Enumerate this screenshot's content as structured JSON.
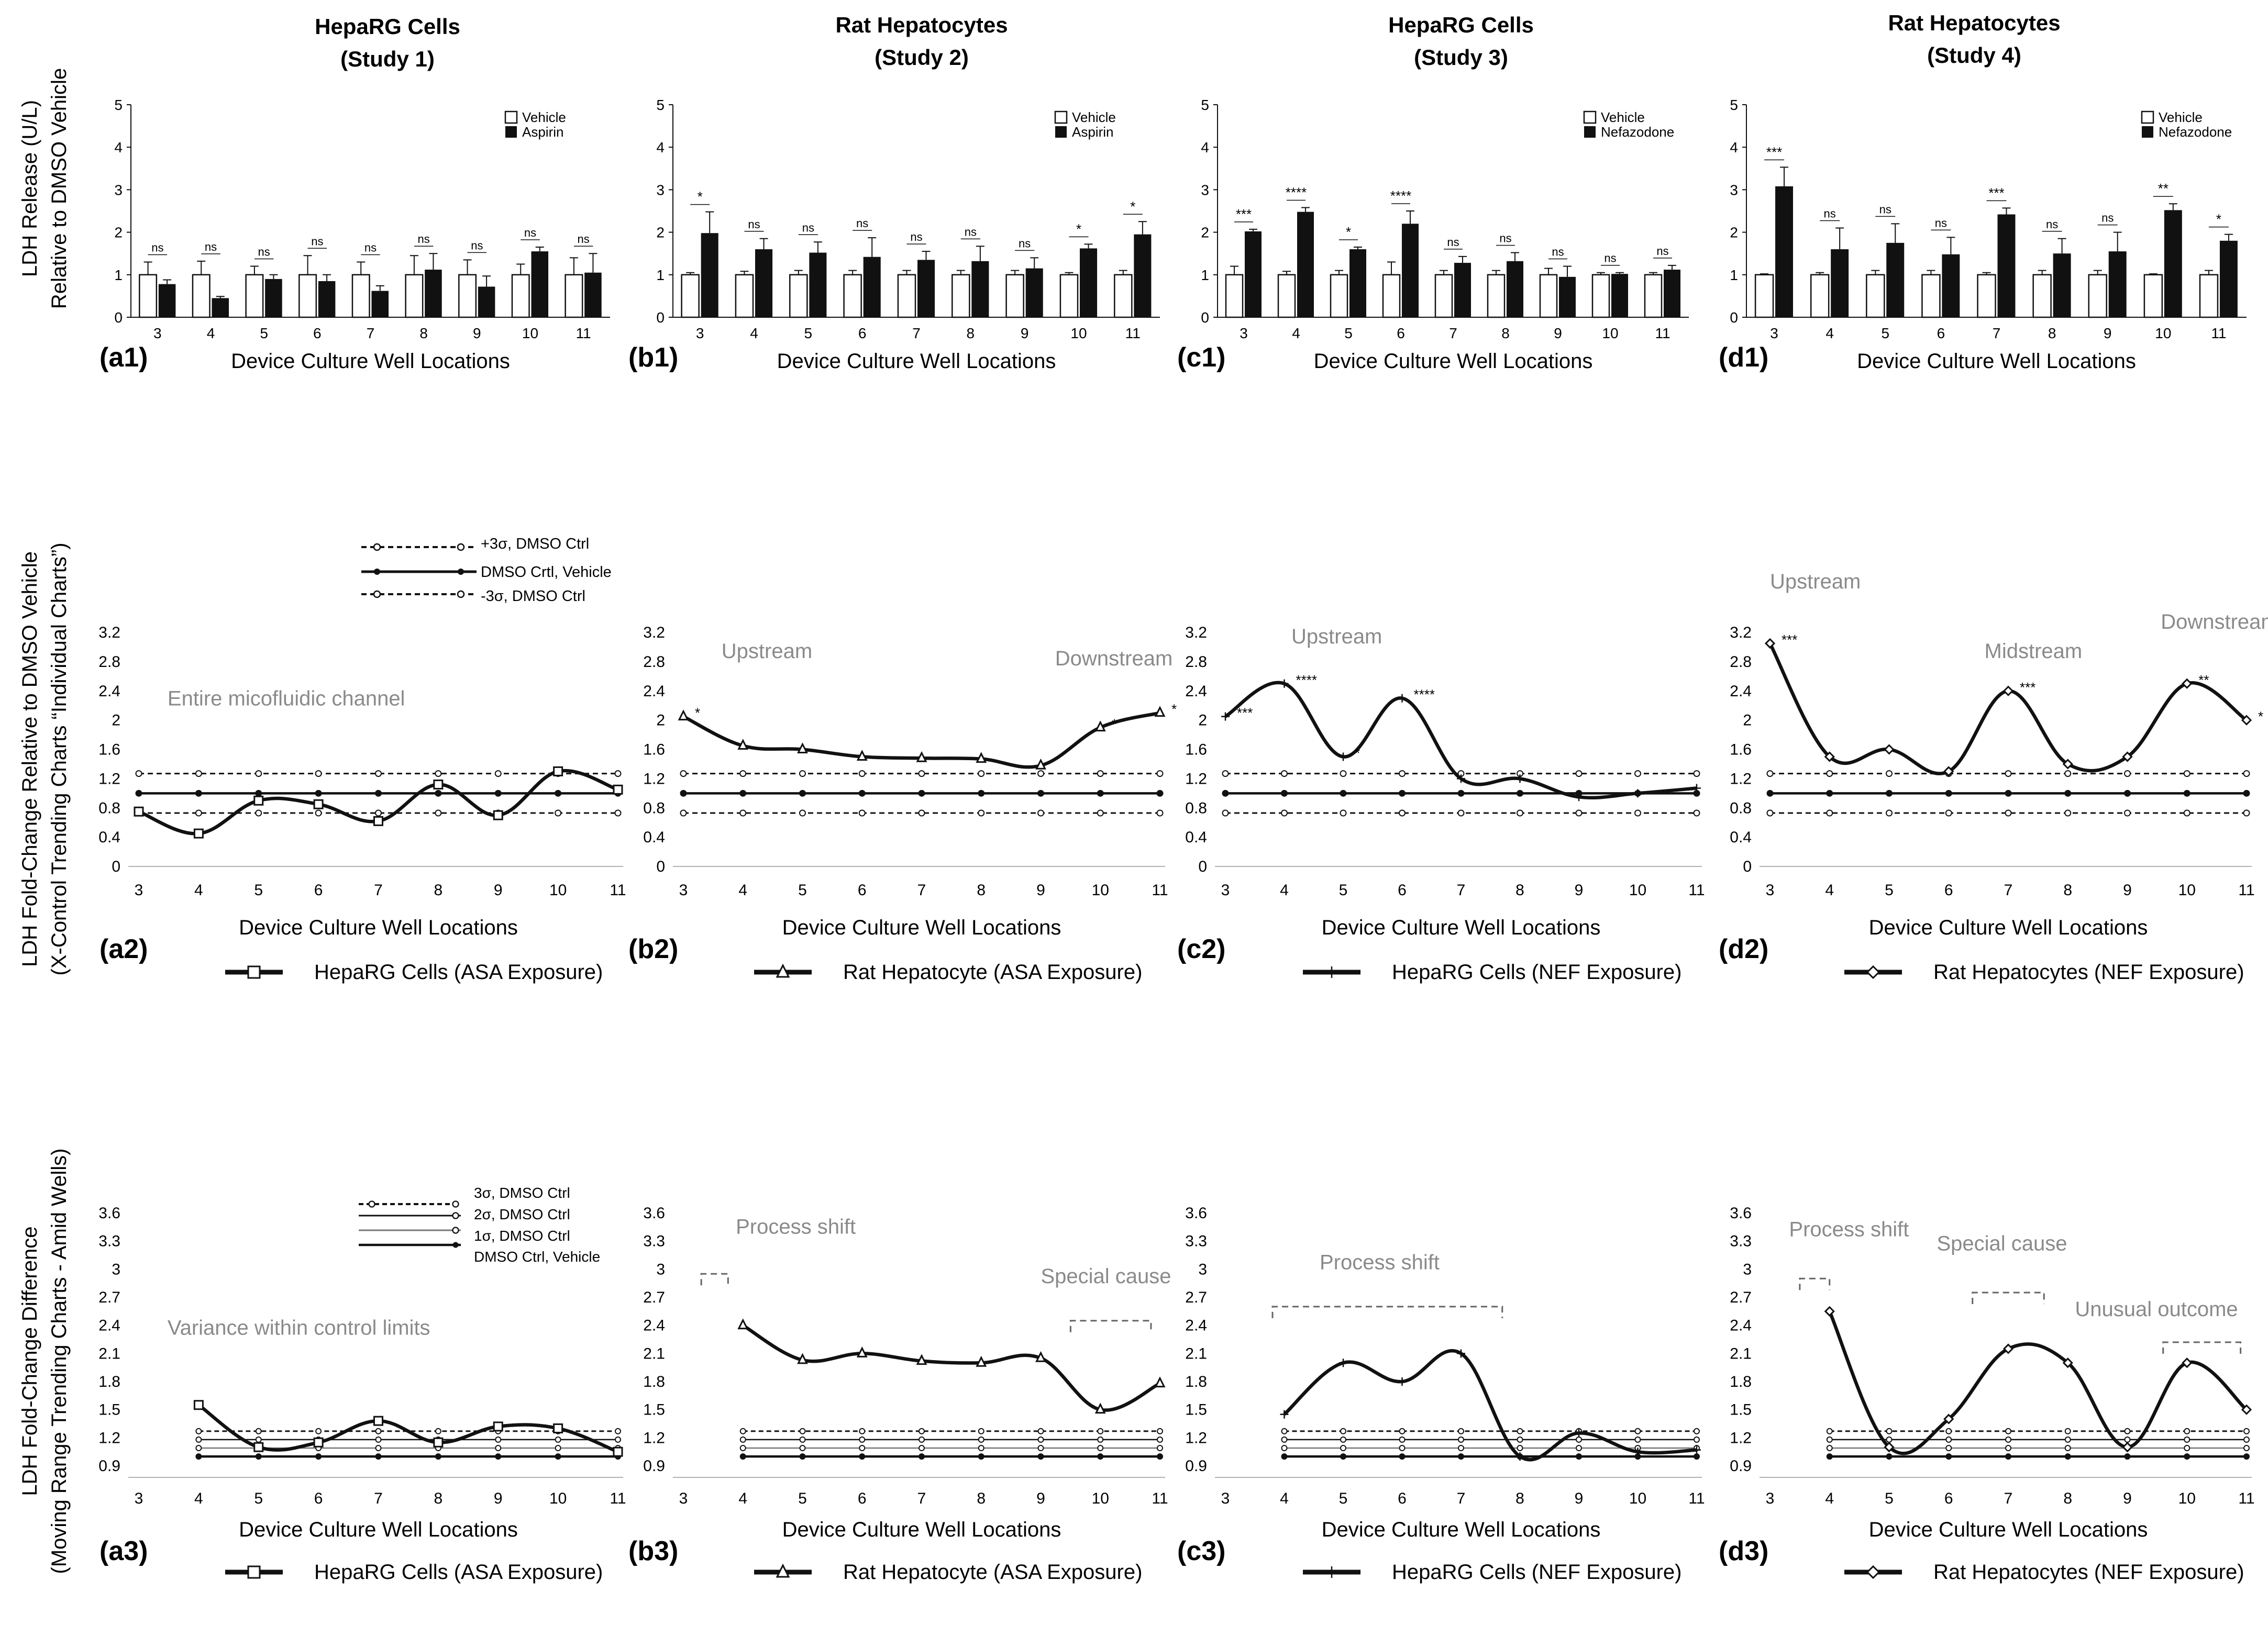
{
  "figure": {
    "row1_ylabel": [
      "LDH Release (U/L)",
      "Relative to DMSO Vehicle"
    ],
    "row2_ylabel": [
      "LDH Fold-Change Relative to DMSO Vehicle",
      "(X-Control Trending Charts “Individual Charts”)"
    ],
    "row3_ylabel": [
      "LDH Fold-Change Difference",
      "(Moving Range Trending Charts - Amid Wells)"
    ],
    "xlabel": "Device Culture Well Locations",
    "panel_titles": [
      [
        "HepaRG Cells",
        "(Study 1)"
      ],
      [
        "Rat Hepatocytes",
        "(Study 2)"
      ],
      [
        "HepaRG Cells",
        "(Study 3)"
      ],
      [
        "Rat Hepatocytes",
        "(Study 4)"
      ]
    ],
    "row2_legend": [
      "+3σ, DMSO Ctrl",
      "DMSO Crtl, Vehicle",
      "-3σ, DMSO Ctrl"
    ],
    "row3_legend": [
      "3σ, DMSO Ctrl",
      "2σ, DMSO Ctrl",
      "1σ, DMSO Ctrl",
      "DMSO Ctrl, Vehicle"
    ],
    "series_names": [
      "HepaRG Cells (ASA Exposure)",
      "Rat Hepatocyte (ASA Exposure)",
      "HepaRG Cells (NEF Exposure)",
      "Rat Hepatocytes (NEF Exposure)"
    ],
    "colors": {
      "ink": "#111111",
      "annotation": "#8a8a8a",
      "bar_vehicle": "#ffffff",
      "bar_treated": "#111111"
    }
  },
  "chart_data": [
    {
      "id": "a1",
      "type": "bar",
      "title": "HepaRG Cells (Study 1)",
      "xlabel": "Device Culture Well Locations",
      "categories": [
        "3",
        "4",
        "5",
        "6",
        "7",
        "8",
        "9",
        "10",
        "11"
      ],
      "ylim": [
        0,
        5
      ],
      "yticks": [
        "0",
        "1",
        "2",
        "3",
        "4",
        "5"
      ],
      "legend": [
        "Vehicle",
        "Aspirin"
      ],
      "series": [
        {
          "name": "Vehicle",
          "values": [
            1,
            1,
            1,
            1,
            1,
            1,
            1,
            1,
            1
          ],
          "err": [
            0.3,
            0.32,
            0.2,
            0.45,
            0.3,
            0.45,
            0.35,
            0.25,
            0.4
          ]
        },
        {
          "name": "Aspirin",
          "values": [
            0.78,
            0.45,
            0.9,
            0.85,
            0.62,
            1.12,
            0.72,
            1.55,
            1.05
          ],
          "err": [
            0.1,
            0.04,
            0.1,
            0.15,
            0.12,
            0.38,
            0.25,
            0.1,
            0.45
          ]
        }
      ],
      "sig": [
        "ns",
        "ns",
        "ns",
        "ns",
        "ns",
        "ns",
        "ns",
        "ns",
        "ns"
      ]
    },
    {
      "id": "b1",
      "type": "bar",
      "title": "Rat Hepatocytes (Study 2)",
      "xlabel": "Device Culture Well Locations",
      "categories": [
        "3",
        "4",
        "5",
        "6",
        "7",
        "8",
        "9",
        "10",
        "11"
      ],
      "ylim": [
        0,
        5
      ],
      "yticks": [
        "0",
        "1",
        "2",
        "3",
        "4",
        "5"
      ],
      "legend": [
        "Vehicle",
        "Aspirin"
      ],
      "series": [
        {
          "name": "Vehicle",
          "values": [
            1,
            1,
            1,
            1,
            1,
            1,
            1,
            1,
            1
          ],
          "err": [
            0.05,
            0.08,
            0.1,
            0.1,
            0.1,
            0.1,
            0.1,
            0.05,
            0.1
          ]
        },
        {
          "name": "Aspirin",
          "values": [
            1.98,
            1.6,
            1.52,
            1.42,
            1.35,
            1.32,
            1.15,
            1.62,
            1.95
          ],
          "err": [
            0.5,
            0.25,
            0.25,
            0.45,
            0.2,
            0.35,
            0.25,
            0.1,
            0.3
          ]
        }
      ],
      "sig": [
        "*",
        "ns",
        "ns",
        "ns",
        "ns",
        "ns",
        "ns",
        "*",
        "*"
      ]
    },
    {
      "id": "c1",
      "type": "bar",
      "title": "HepaRG Cells (Study 3)",
      "xlabel": "Device Culture Well Locations",
      "categories": [
        "3",
        "4",
        "5",
        "6",
        "7",
        "8",
        "9",
        "10",
        "11"
      ],
      "ylim": [
        0,
        5
      ],
      "yticks": [
        "0",
        "1",
        "2",
        "3",
        "4",
        "5"
      ],
      "legend": [
        "Vehicle",
        "Nefazodone"
      ],
      "series": [
        {
          "name": "Vehicle",
          "values": [
            1,
            1,
            1,
            1,
            1,
            1,
            1,
            1,
            1
          ],
          "err": [
            0.2,
            0.08,
            0.1,
            0.3,
            0.1,
            0.1,
            0.15,
            0.05,
            0.05
          ]
        },
        {
          "name": "Nefazodone",
          "values": [
            2.02,
            2.48,
            1.6,
            2.2,
            1.28,
            1.32,
            0.95,
            1.02,
            1.12
          ],
          "err": [
            0.05,
            0.1,
            0.05,
            0.3,
            0.15,
            0.2,
            0.25,
            0.03,
            0.1
          ]
        }
      ],
      "sig": [
        "***",
        "****",
        "*",
        "****",
        "ns",
        "ns",
        "ns",
        "ns",
        "ns"
      ]
    },
    {
      "id": "d1",
      "type": "bar",
      "title": "Rat Hepatocytes (Study 4)",
      "xlabel": "Device Culture Well Locations",
      "categories": [
        "3",
        "4",
        "5",
        "6",
        "7",
        "8",
        "9",
        "10",
        "11"
      ],
      "ylim": [
        0,
        5
      ],
      "yticks": [
        "0",
        "1",
        "2",
        "3",
        "4",
        "5"
      ],
      "legend": [
        "Vehicle",
        "Nefazodone"
      ],
      "series": [
        {
          "name": "Vehicle",
          "values": [
            1,
            1,
            1,
            1,
            1,
            1,
            1,
            1,
            1
          ],
          "err": [
            0.02,
            0.05,
            0.1,
            0.1,
            0.05,
            0.1,
            0.1,
            0.02,
            0.1
          ]
        },
        {
          "name": "Nefazodone",
          "values": [
            3.08,
            1.6,
            1.75,
            1.48,
            2.42,
            1.5,
            1.55,
            2.52,
            1.8
          ],
          "err": [
            0.45,
            0.5,
            0.45,
            0.4,
            0.15,
            0.35,
            0.45,
            0.15,
            0.15
          ]
        }
      ],
      "sig": [
        "***",
        "ns",
        "ns",
        "ns",
        "***",
        "ns",
        "ns",
        "**",
        "*"
      ]
    },
    {
      "id": "a2",
      "type": "line",
      "title": "HepaRG Cells (ASA Exposure)",
      "xlabel": "Device Culture Well Locations",
      "x": [
        3,
        4,
        5,
        6,
        7,
        8,
        9,
        10,
        11
      ],
      "y": [
        0.75,
        0.45,
        0.9,
        0.85,
        0.62,
        1.12,
        0.7,
        1.3,
        1.05
      ],
      "marker": "square",
      "ylim": [
        0,
        3.2
      ],
      "yticks": [
        "0",
        "0.4",
        "0.8",
        "1.2",
        "1.6",
        "2",
        "2.4",
        "2.8",
        "3.2"
      ],
      "xlim": [
        3,
        11
      ],
      "limits": {
        "upper": 1.27,
        "center": 1.0,
        "lower": 0.73
      },
      "annotations": [
        "Entire micofluidic channel"
      ],
      "sig_labels": []
    },
    {
      "id": "b2",
      "type": "line",
      "title": "Rat Hepatocyte (ASA Exposure)",
      "xlabel": "Device Culture Well Locations",
      "x": [
        3,
        4,
        5,
        6,
        7,
        8,
        9,
        10,
        11
      ],
      "y": [
        2.05,
        1.65,
        1.6,
        1.5,
        1.48,
        1.47,
        1.38,
        1.9,
        2.1
      ],
      "marker": "triangle",
      "ylim": [
        0,
        3.2
      ],
      "yticks": [
        "0",
        "0.4",
        "0.8",
        "1.2",
        "1.6",
        "2",
        "2.4",
        "2.8",
        "3.2"
      ],
      "xlim": [
        3,
        11
      ],
      "limits": {
        "upper": 1.27,
        "center": 1.0,
        "lower": 0.73
      },
      "annotations": [
        "Upstream",
        "Downstream"
      ],
      "sig_labels": [
        {
          "x": 3,
          "text": "*"
        },
        {
          "x": 10,
          "text": "*"
        },
        {
          "x": 11,
          "text": "*"
        }
      ]
    },
    {
      "id": "c2",
      "type": "line",
      "title": "HepaRG Cells (NEF Exposure)",
      "xlabel": "Device Culture Well Locations",
      "x": [
        3,
        4,
        5,
        6,
        7,
        8,
        9,
        10,
        11
      ],
      "y": [
        2.05,
        2.5,
        1.5,
        2.3,
        1.2,
        1.2,
        0.95,
        1.0,
        1.07
      ],
      "marker": "plus",
      "ylim": [
        0,
        3.2
      ],
      "yticks": [
        "0",
        "0.4",
        "0.8",
        "1.2",
        "1.6",
        "2",
        "2.4",
        "2.8",
        "3.2"
      ],
      "xlim": [
        3,
        11
      ],
      "limits": {
        "upper": 1.27,
        "center": 1.0,
        "lower": 0.73
      },
      "annotations": [
        "Upstream"
      ],
      "sig_labels": [
        {
          "x": 3,
          "text": "***"
        },
        {
          "x": 4,
          "text": "****"
        },
        {
          "x": 5,
          "text": "*"
        },
        {
          "x": 6,
          "text": "****"
        }
      ]
    },
    {
      "id": "d2",
      "type": "line",
      "title": "Rat Hepatocytes (NEF Exposure)",
      "xlabel": "Device Culture Well Locations",
      "x": [
        3,
        4,
        5,
        6,
        7,
        8,
        9,
        10,
        11
      ],
      "y": [
        3.05,
        1.5,
        1.6,
        1.3,
        2.4,
        1.4,
        1.5,
        2.5,
        2.0
      ],
      "marker": "diamond",
      "ylim": [
        0,
        3.2
      ],
      "yticks": [
        "0",
        "0.4",
        "0.8",
        "1.2",
        "1.6",
        "2",
        "2.4",
        "2.8",
        "3.2"
      ],
      "xlim": [
        3,
        11
      ],
      "limits": {
        "upper": 1.27,
        "center": 1.0,
        "lower": 0.73
      },
      "annotations": [
        "Upstream",
        "Midstream",
        "Downstream"
      ],
      "sig_labels": [
        {
          "x": 3,
          "text": "***"
        },
        {
          "x": 7,
          "text": "***"
        },
        {
          "x": 10,
          "text": "**"
        },
        {
          "x": 11,
          "text": "*"
        }
      ]
    },
    {
      "id": "a3",
      "type": "line",
      "title": "HepaRG Cells (ASA Exposure)",
      "xlabel": "Device Culture Well Locations",
      "x": [
        4,
        5,
        6,
        7,
        8,
        9,
        10,
        11
      ],
      "y": [
        1.55,
        1.1,
        1.15,
        1.38,
        1.15,
        1.32,
        1.3,
        1.05
      ],
      "marker": "square",
      "ylim": [
        0.9,
        3.6
      ],
      "yticks": [
        "0.9",
        "1.2",
        "1.5",
        "1.8",
        "2.1",
        "2.4",
        "2.7",
        "3",
        "3.3",
        "3.6"
      ],
      "xlim": [
        3,
        11
      ],
      "xticks": [
        "3",
        "4",
        "5",
        "6",
        "7",
        "8",
        "9",
        "10",
        "11"
      ],
      "limits": {
        "sigma3": 1.27,
        "sigma2": 1.18,
        "sigma1": 1.09,
        "center": 1.0
      },
      "annotations": [
        "Variance within control limits"
      ]
    },
    {
      "id": "b3",
      "type": "line",
      "title": "Rat Hepatocyte (ASA Exposure)",
      "xlabel": "Device Culture Well Locations",
      "x": [
        4,
        5,
        6,
        7,
        8,
        9,
        10,
        11
      ],
      "y": [
        2.4,
        2.03,
        2.1,
        2.02,
        2.0,
        2.05,
        1.5,
        1.78
      ],
      "marker": "triangle",
      "ylim": [
        0.9,
        3.6
      ],
      "yticks": [
        "0.9",
        "1.2",
        "1.5",
        "1.8",
        "2.1",
        "2.4",
        "2.7",
        "3",
        "3.3",
        "3.6"
      ],
      "xlim": [
        3,
        11
      ],
      "xticks": [
        "3",
        "4",
        "5",
        "6",
        "7",
        "8",
        "9",
        "10",
        "11"
      ],
      "limits": {
        "sigma3": 1.27,
        "sigma2": 1.18,
        "sigma1": 1.09,
        "center": 1.0
      },
      "annotations": [
        "Process shift",
        "Special cause"
      ]
    },
    {
      "id": "c3",
      "type": "line",
      "title": "HepaRG Cells (NEF Exposure)",
      "xlabel": "Device Culture Well Locations",
      "x": [
        4,
        5,
        6,
        7,
        8,
        9,
        10,
        11
      ],
      "y": [
        1.45,
        2.0,
        1.8,
        2.1,
        1.0,
        1.25,
        1.05,
        1.07
      ],
      "marker": "plus",
      "ylim": [
        0.9,
        3.6
      ],
      "yticks": [
        "0.9",
        "1.2",
        "1.5",
        "1.8",
        "2.1",
        "2.4",
        "2.7",
        "3",
        "3.3",
        "3.6"
      ],
      "xlim": [
        3,
        11
      ],
      "xticks": [
        "3",
        "4",
        "5",
        "6",
        "7",
        "8",
        "9",
        "10",
        "11"
      ],
      "limits": {
        "sigma3": 1.27,
        "sigma2": 1.18,
        "sigma1": 1.09,
        "center": 1.0
      },
      "annotations": [
        "Process shift"
      ]
    },
    {
      "id": "d3",
      "type": "line",
      "title": "Rat Hepatocytes (NEF Exposure)",
      "xlabel": "Device Culture Well Locations",
      "x": [
        4,
        5,
        6,
        7,
        8,
        9,
        10,
        11
      ],
      "y": [
        2.55,
        1.1,
        1.4,
        2.15,
        2.0,
        1.1,
        2.0,
        1.5
      ],
      "marker": "diamond",
      "ylim": [
        0.9,
        3.6
      ],
      "yticks": [
        "0.9",
        "1.2",
        "1.5",
        "1.8",
        "2.1",
        "2.4",
        "2.7",
        "3",
        "3.3",
        "3.6"
      ],
      "xlim": [
        3,
        11
      ],
      "xticks": [
        "3",
        "4",
        "5",
        "6",
        "7",
        "8",
        "9",
        "10",
        "11"
      ],
      "limits": {
        "sigma3": 1.27,
        "sigma2": 1.18,
        "sigma1": 1.09,
        "center": 1.0
      },
      "annotations": [
        "Process shift",
        "Special cause",
        "Unusual outcome"
      ]
    }
  ]
}
